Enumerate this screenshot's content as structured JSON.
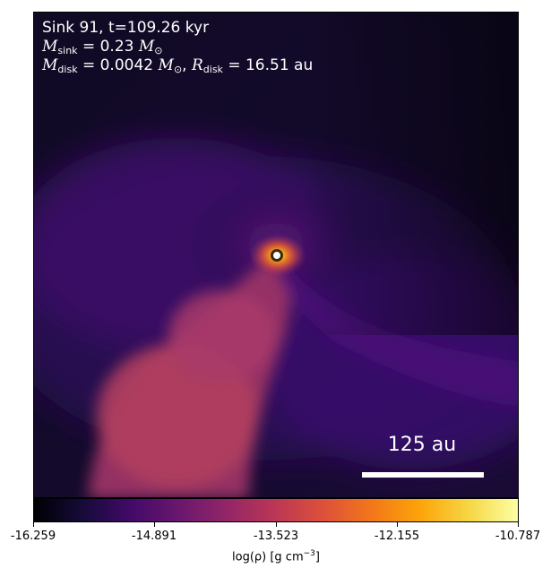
{
  "annotation": {
    "line1": "Sink 91, t=109.26 kyr",
    "mass_sink_symbol": "M",
    "mass_sink_sub": "sink",
    "mass_sink_value": "= 0.23",
    "mass_unit_symbol": "M",
    "mass_unit_sub": "⊙",
    "mass_disk_symbol": "M",
    "mass_disk_sub": "disk",
    "mass_disk_value": "= 0.0042",
    "radius_symbol": "R",
    "radius_sub": "disk",
    "radius_value": "= 16.51 au"
  },
  "scalebar": {
    "label": "125 au"
  },
  "colorbar": {
    "min": -16.259,
    "max": -10.787,
    "ticks": [
      "-16.259",
      "-14.891",
      "-13.523",
      "-12.155",
      "-10.787"
    ],
    "label_main": "log(ρ) [g cm",
    "label_exp": "−3",
    "label_end": "]",
    "colormap": "inferno-like"
  },
  "colors": {
    "background_dark": "#0a0618",
    "filament": "#b13e5f",
    "sink_core": "#f2c94c"
  }
}
